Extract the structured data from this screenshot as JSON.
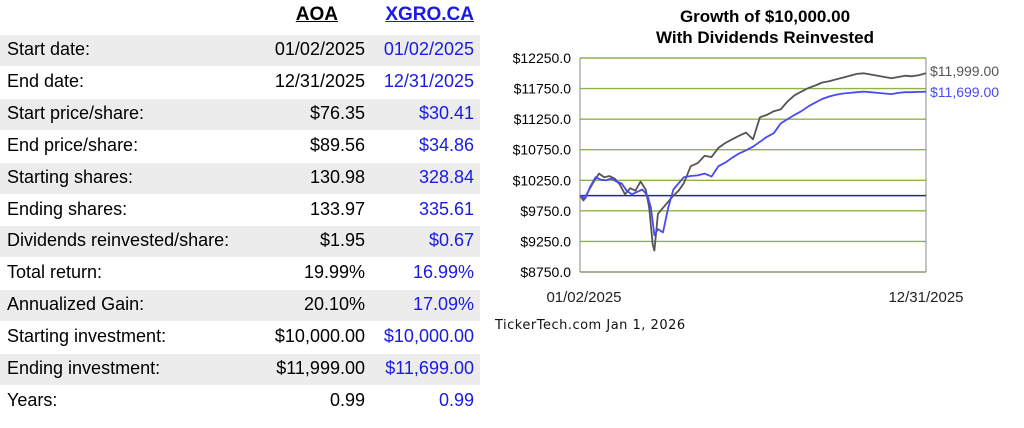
{
  "table": {
    "headers": {
      "a": "AOA",
      "b": "XGRO.CA"
    },
    "rows": [
      {
        "label": "Start date:",
        "a": "01/02/2025",
        "b": "01/02/2025"
      },
      {
        "label": "End date:",
        "a": "12/31/2025",
        "b": "12/31/2025"
      },
      {
        "label": "Start price/share:",
        "a": "$76.35",
        "b": "$30.41"
      },
      {
        "label": "End price/share:",
        "a": "$89.56",
        "b": "$34.86"
      },
      {
        "label": "Starting shares:",
        "a": "130.98",
        "b": "328.84"
      },
      {
        "label": "Ending shares:",
        "a": "133.97",
        "b": "335.61"
      },
      {
        "label": "Dividends reinvested/share:",
        "a": "$1.95",
        "b": "$0.67"
      },
      {
        "label": "Total return:",
        "a": "19.99%",
        "b": "16.99%"
      },
      {
        "label": "Annualized Gain:",
        "a": "20.10%",
        "b": "17.09%"
      },
      {
        "label": "Starting investment:",
        "a": "$10,000.00",
        "b": "$10,000.00"
      },
      {
        "label": "Ending investment:",
        "a": "$11,999.00",
        "b": "$11,699.00"
      },
      {
        "label": "Years:",
        "a": "0.99",
        "b": "0.99"
      }
    ]
  },
  "chart_data": {
    "type": "line",
    "title": "Growth of $10,000.00",
    "subtitle": "With Dividends Reinvested",
    "yticks": [
      "$12250.0",
      "$11750.0",
      "$11250.0",
      "$10750.0",
      "$10250.0",
      "$9750.0",
      "$9250.0",
      "$8750.0"
    ],
    "ylim": [
      8750,
      12250
    ],
    "xlim": [
      0,
      1
    ],
    "xticks": [
      "01/02/2025",
      "12/31/2025"
    ],
    "baseline": 10000,
    "grid": true,
    "series": [
      {
        "name": "AOA",
        "color": "#555555",
        "end_label": "$11,999.00",
        "x": [
          0,
          0.01,
          0.025,
          0.04,
          0.055,
          0.07,
          0.085,
          0.1,
          0.115,
          0.13,
          0.145,
          0.16,
          0.175,
          0.19,
          0.2,
          0.21,
          0.215,
          0.225,
          0.24,
          0.255,
          0.27,
          0.285,
          0.3,
          0.32,
          0.34,
          0.36,
          0.38,
          0.4,
          0.42,
          0.44,
          0.46,
          0.48,
          0.5,
          0.52,
          0.54,
          0.56,
          0.58,
          0.6,
          0.62,
          0.64,
          0.66,
          0.68,
          0.7,
          0.72,
          0.74,
          0.76,
          0.78,
          0.8,
          0.82,
          0.84,
          0.86,
          0.88,
          0.9,
          0.92,
          0.94,
          0.96,
          0.98,
          1.0
        ],
        "values": [
          10000,
          9920,
          10080,
          10230,
          10360,
          10300,
          10320,
          10280,
          10180,
          10020,
          10120,
          10080,
          10230,
          10100,
          9800,
          9200,
          9100,
          9700,
          9800,
          9900,
          10000,
          10080,
          10200,
          10480,
          10530,
          10650,
          10630,
          10780,
          10860,
          10920,
          10980,
          11030,
          10920,
          11280,
          11320,
          11380,
          11410,
          11540,
          11640,
          11700,
          11760,
          11800,
          11850,
          11870,
          11900,
          11930,
          11960,
          11990,
          12000,
          11980,
          11960,
          11940,
          11920,
          11940,
          11960,
          11950,
          11970,
          11999
        ]
      },
      {
        "name": "XGRO.CA",
        "color": "#4a4af0",
        "end_label": "$11,699.00",
        "x": [
          0,
          0.015,
          0.03,
          0.045,
          0.06,
          0.075,
          0.09,
          0.105,
          0.12,
          0.135,
          0.15,
          0.165,
          0.18,
          0.195,
          0.205,
          0.215,
          0.225,
          0.24,
          0.255,
          0.27,
          0.285,
          0.3,
          0.32,
          0.34,
          0.36,
          0.38,
          0.4,
          0.42,
          0.44,
          0.46,
          0.48,
          0.5,
          0.52,
          0.54,
          0.56,
          0.58,
          0.6,
          0.62,
          0.64,
          0.66,
          0.68,
          0.7,
          0.72,
          0.74,
          0.76,
          0.78,
          0.8,
          0.82,
          0.84,
          0.86,
          0.88,
          0.9,
          0.92,
          0.94,
          0.96,
          0.98,
          1.0
        ],
        "values": [
          10000,
          9950,
          10150,
          10300,
          10260,
          10250,
          10280,
          10230,
          10200,
          10080,
          10020,
          10060,
          10100,
          10000,
          9800,
          9350,
          9450,
          9400,
          9800,
          10100,
          10200,
          10300,
          10320,
          10330,
          10360,
          10310,
          10480,
          10540,
          10620,
          10690,
          10740,
          10800,
          10880,
          10960,
          11020,
          11180,
          11250,
          11320,
          11380,
          11460,
          11520,
          11580,
          11620,
          11650,
          11670,
          11680,
          11690,
          11700,
          11690,
          11680,
          11670,
          11660,
          11680,
          11690,
          11690,
          11695,
          11699
        ]
      }
    ]
  },
  "credit": "TickerTech.com  Jan 1, 2026"
}
